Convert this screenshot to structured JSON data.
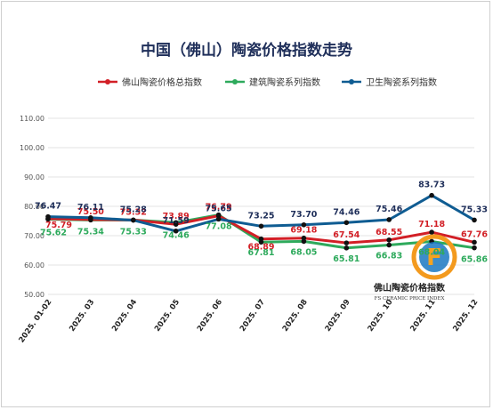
{
  "chart_data": {
    "type": "line",
    "title": "中国（佛山）陶瓷价格指数走势",
    "xlabel": "",
    "ylabel": "",
    "categories": [
      "2025. 01-02",
      "2025. 03",
      "2025. 04",
      "2025. 05",
      "2025. 06",
      "2025. 07",
      "2025. 08",
      "2025. 09",
      "2025. 10",
      "2025. 11",
      "2025. 12"
    ],
    "ylim": [
      50,
      110
    ],
    "yticks": [
      "50.00",
      "60.00",
      "70.00",
      "80.00",
      "90.00",
      "100.00",
      "110.00"
    ],
    "grid": true,
    "legend_position": "top",
    "series": [
      {
        "name": "佛山陶瓷价格总指数",
        "color": "#d21f26",
        "values": [
          75.79,
          75.5,
          75.32,
          73.89,
          76.79,
          68.89,
          69.18,
          67.54,
          68.55,
          71.18,
          67.76
        ]
      },
      {
        "name": "建筑陶瓷系列指数",
        "color": "#2eaa5c",
        "values": [
          75.62,
          75.34,
          75.33,
          74.46,
          77.08,
          67.81,
          68.05,
          65.81,
          66.83,
          68.04,
          65.86
        ]
      },
      {
        "name": "卫生陶瓷系列指数",
        "color": "#0f5c92",
        "values": [
          76.47,
          76.11,
          75.28,
          71.59,
          75.65,
          73.25,
          73.7,
          74.46,
          75.46,
          83.73,
          75.33
        ]
      }
    ]
  },
  "logo": {
    "glyph": "F",
    "name": "佛山陶瓷价格指数",
    "subtitle": "FS CERAMIC PRICE INDEX",
    "colors": [
      "#f39a1e",
      "#1a78c2"
    ]
  }
}
